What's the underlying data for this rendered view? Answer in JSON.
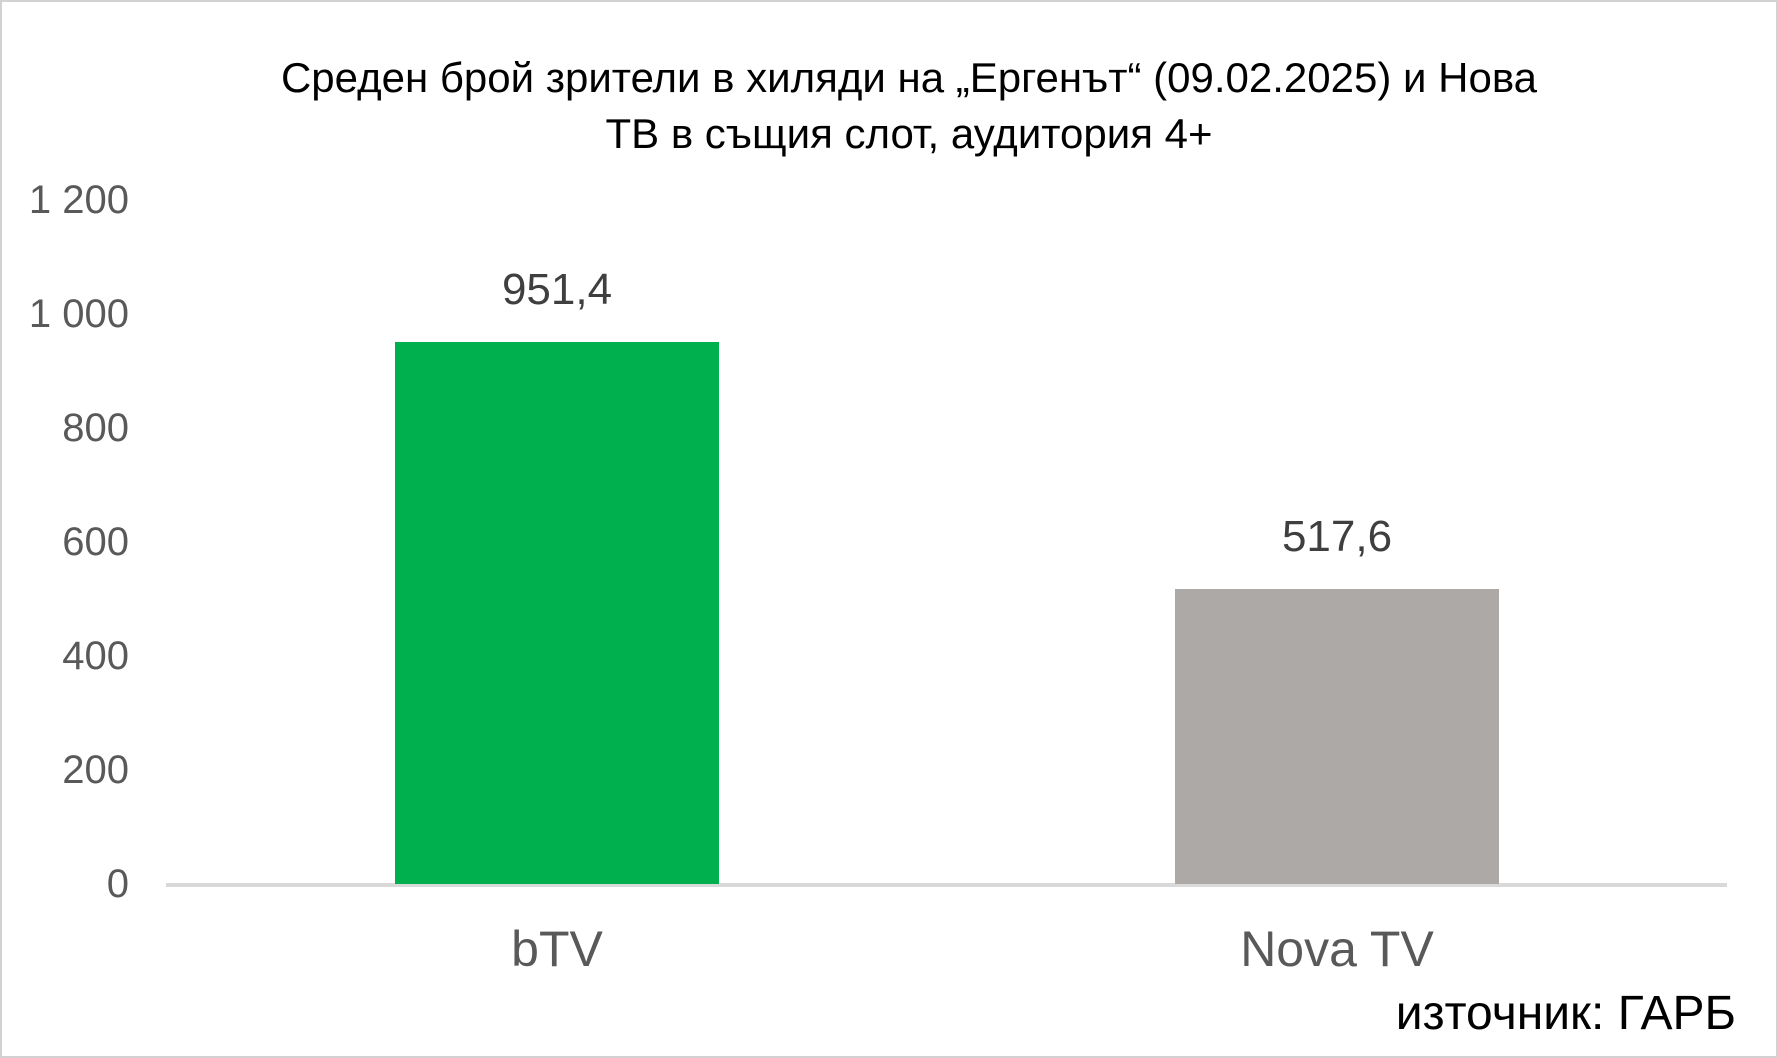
{
  "title": {
    "lines": [
      "Среден брой зрители в хиляди на „Ергенът“ (09.02.2025) и Нова",
      "ТВ в същия слот, аудитория 4+"
    ]
  },
  "source": {
    "text": "източник: ГАРБ"
  },
  "chart_data": {
    "type": "bar",
    "title": "Среден брой зрители в хиляди на „Ергенът“ (09.02.2025) и Нова ТВ в същия слот, аудитория 4+",
    "categories": [
      "bTV",
      "Nova TV"
    ],
    "values": [
      951.4,
      517.6
    ],
    "value_labels": [
      "951,4",
      "517,6"
    ],
    "bar_colors": [
      "#00B04F",
      "#ACA9A7"
    ],
    "xlabel": "",
    "ylabel": "",
    "ylim": [
      0,
      1200
    ],
    "ytick_interval": 200,
    "yticks": [
      {
        "value": 0,
        "label": "0"
      },
      {
        "value": 200,
        "label": "200"
      },
      {
        "value": 400,
        "label": "400"
      },
      {
        "value": 600,
        "label": "600"
      },
      {
        "value": 800,
        "label": "800"
      },
      {
        "value": 1000,
        "label": "1 000"
      },
      {
        "value": 1200,
        "label": "1 200"
      }
    ],
    "grid": false,
    "legend": false,
    "source": "източник: ГАРБ"
  },
  "colors": {
    "title_text": "#000000",
    "tick_label": "#595959",
    "category_label": "#595959",
    "data_label": "#3f3f3f",
    "axis_line": "#d9d9d9",
    "background": "#ffffff",
    "frame_border": "#d2d2d2"
  }
}
